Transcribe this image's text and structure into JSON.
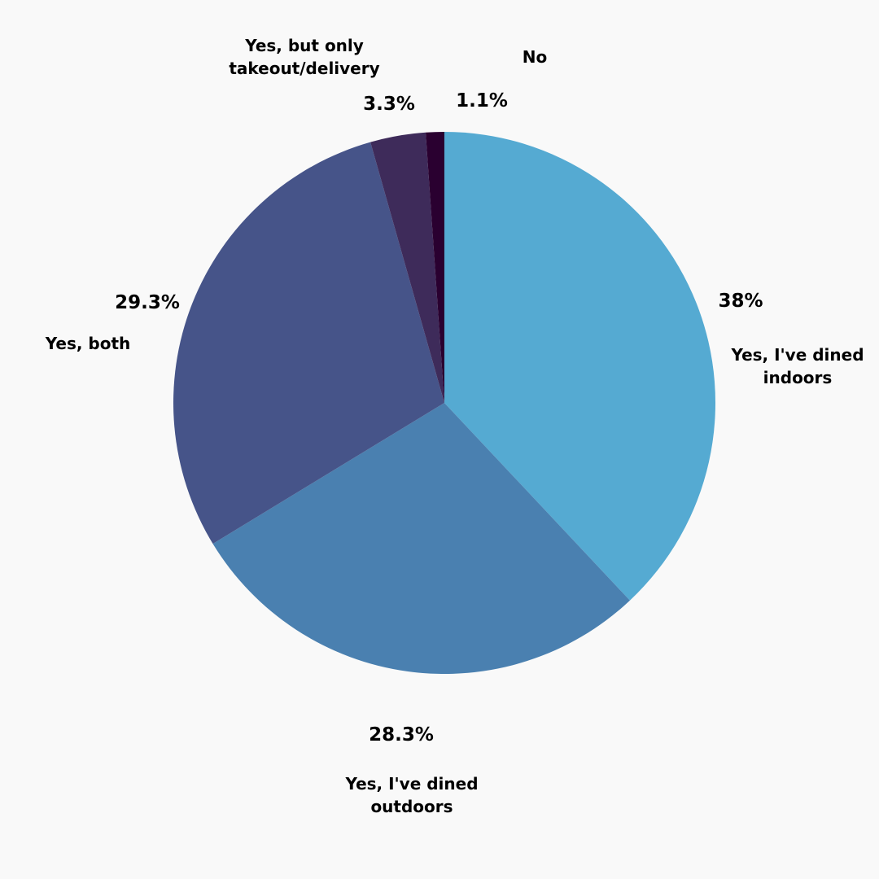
{
  "chart_data": {
    "type": "pie",
    "categories": [
      "Yes, I've dined indoors",
      "Yes, I've dined outdoors",
      "Yes, both",
      "Yes, but only takeout/delivery",
      "No"
    ],
    "values": [
      38,
      28.3,
      29.3,
      3.3,
      1.1
    ],
    "value_labels": [
      "38%",
      "28.3%",
      "29.3%",
      "3.3%",
      "1.1%"
    ],
    "colors": [
      "#55aad2",
      "#4a80b0",
      "#465489",
      "#3e2b5a",
      "#2a0030"
    ]
  }
}
